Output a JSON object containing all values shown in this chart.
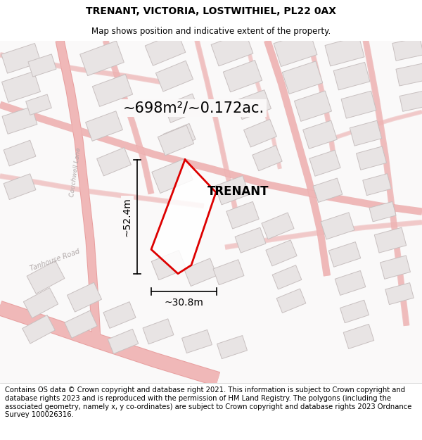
{
  "title": "TRENANT, VICTORIA, LOSTWITHIEL, PL22 0AX",
  "subtitle": "Map shows position and indicative extent of the property.",
  "area_label": "~698m²/~0.172ac.",
  "property_name": "TRENANT",
  "dim_height": "~52.4m",
  "dim_width": "~30.8m",
  "footer_text": "Contains OS data © Crown copyright and database right 2021. This information is subject to Crown copyright and database rights 2023 and is reproduced with the permission of HM Land Registry. The polygons (including the associated geometry, namely x, y co-ordinates) are subject to Crown copyright and database rights 2023 Ordnance Survey 100026316.",
  "title_fontsize": 10,
  "subtitle_fontsize": 8.5,
  "area_fontsize": 15,
  "property_fontsize": 12,
  "dim_fontsize": 10,
  "footer_fontsize": 7.2,
  "map_bg": "#faf8f8",
  "road_color": "#f0b8b8",
  "road_edge": "#e8a0a0",
  "building_fill": "#e8e4e4",
  "building_edge": "#c8c0c0",
  "plot_color": "#dd0000",
  "road_label_color": "#aaaaaa",
  "dim_line_color": "#111111"
}
